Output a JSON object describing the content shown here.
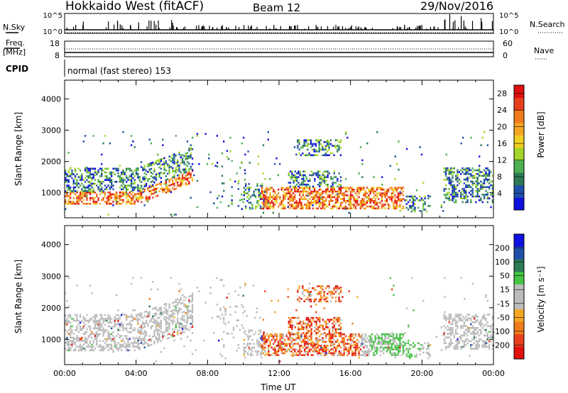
{
  "header": {
    "station": "Hokkaido West (fitACF)",
    "beam": "Beam 12",
    "date": "29/Nov/2016"
  },
  "top_panels": {
    "nsky_label": "N.Sky",
    "nsky_ticks": [
      "10^5",
      "10^0"
    ],
    "nsearch_label": "N.Search",
    "nsearch_ticks": [
      "10^5",
      "10^0"
    ],
    "freq_label": "Freq.",
    "freq_unit": "[MHz]",
    "freq_ticks": [
      "18",
      "8"
    ],
    "nave_label": "Nave",
    "nave_ticks": [
      "60",
      "0"
    ],
    "cpid_label": "CPID",
    "cpid_text": "normal (fast stereo) 153"
  },
  "colors": {
    "power_scale": [
      "#1010e0",
      "#1f4faa",
      "#2d7a55",
      "#4caf50",
      "#a3d52b",
      "#f0d020",
      "#f5a623",
      "#f07b1a",
      "#e8401c",
      "#e01010"
    ],
    "velocity_scale": [
      "#1010e0",
      "#1f4faa",
      "#2d7a55",
      "#44c444",
      "#bcbcbc",
      "#bcbcbc",
      "#f5a623",
      "#f07b1a",
      "#e8401c",
      "#e01010"
    ]
  },
  "chart_data": [
    {
      "type": "heatmap",
      "name": "power",
      "ylabel": "Slant Range [km]",
      "xlabel": "",
      "y_ticks": [
        "1000",
        "2000",
        "3000",
        "4000"
      ],
      "ylim": [
        200,
        4600
      ],
      "xlim": [
        0,
        24
      ],
      "colorbar_label": "Power [dB]",
      "colorbar_ticks": [
        "4",
        "8",
        "12",
        "16",
        "20",
        "24",
        "28"
      ],
      "colorbar_range": [
        0,
        30
      ]
    },
    {
      "type": "heatmap",
      "name": "velocity",
      "ylabel": "Slant Range [km]",
      "xlabel": "Time UT",
      "x_ticks": [
        "00:00",
        "04:00",
        "08:00",
        "12:00",
        "16:00",
        "20:00",
        "00:00"
      ],
      "y_ticks": [
        "1000",
        "2000",
        "3000",
        "4000"
      ],
      "ylim": [
        200,
        4600
      ],
      "xlim": [
        0,
        24
      ],
      "colorbar_label": "Velocity [m s⁻¹]",
      "colorbar_ticks": [
        "200",
        "100",
        "50",
        "15",
        "-15",
        "-50",
        "-100",
        "-200"
      ]
    }
  ]
}
